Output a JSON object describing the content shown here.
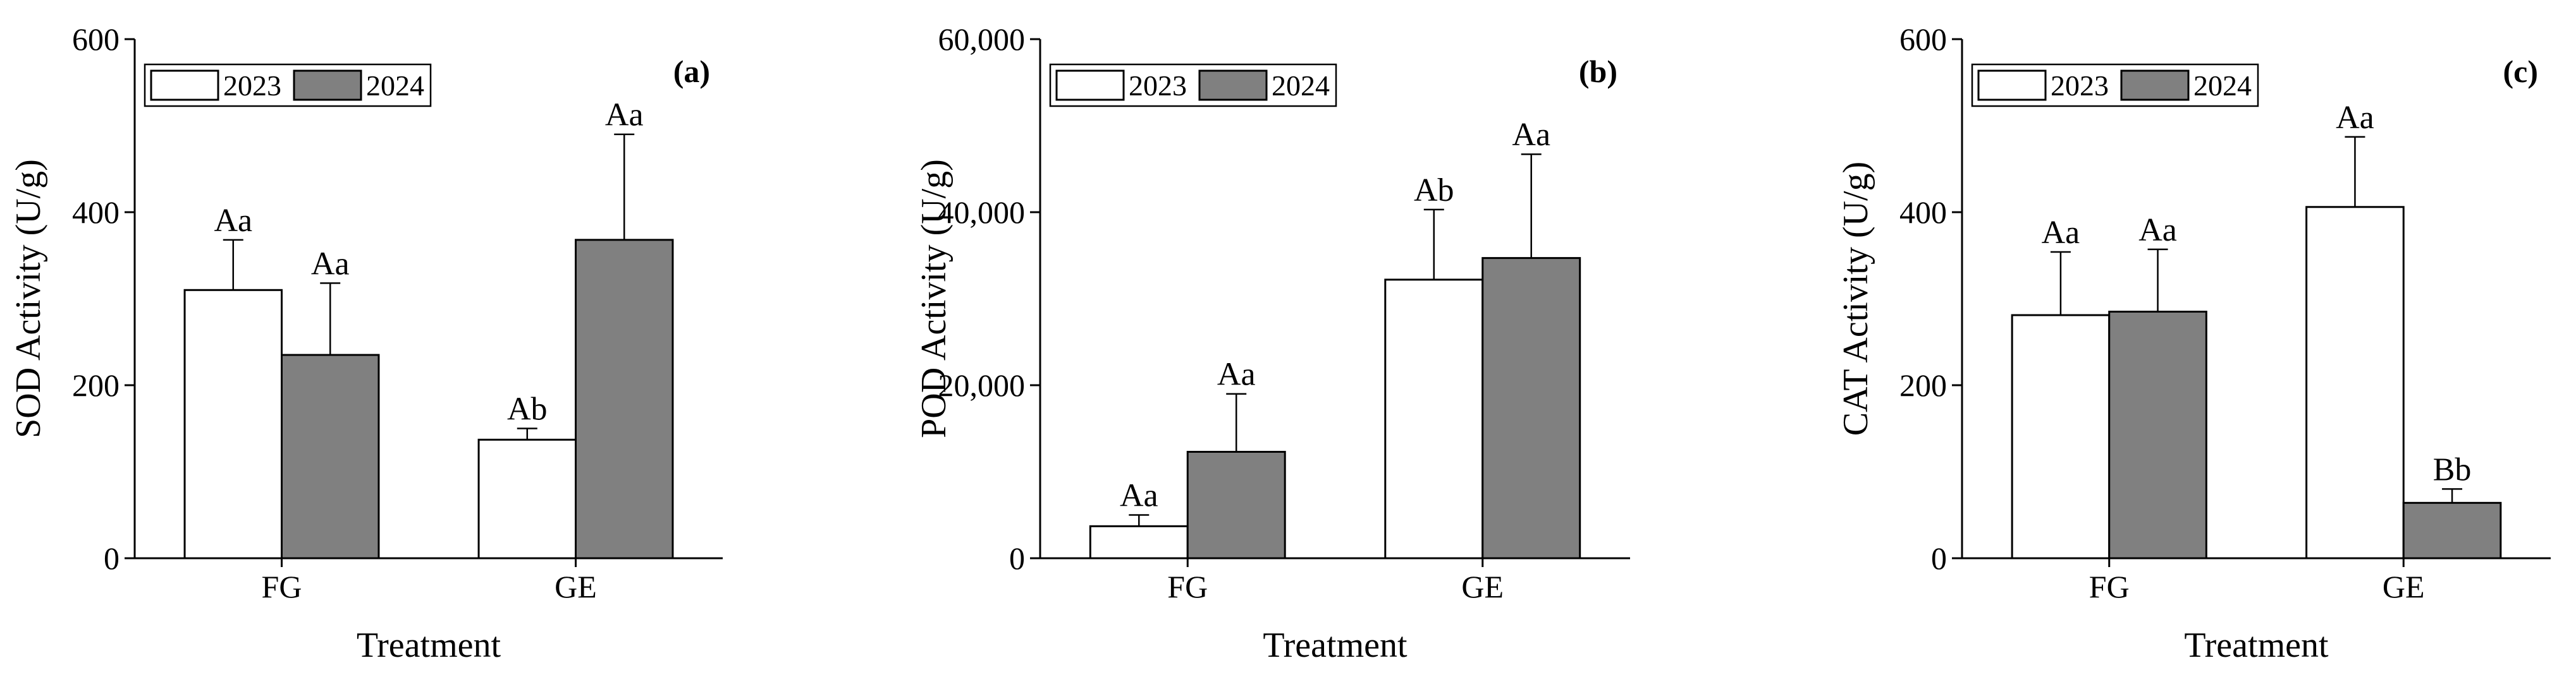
{
  "colors": {
    "series_2023": "#ffffff",
    "series_2024": "#808080",
    "axis": "#000000"
  },
  "chart_data": [
    {
      "type": "bar",
      "panel": "(a)",
      "ylabel": "SOD Activity (U/g)",
      "xlabel": "Treatment",
      "categories": [
        "FG",
        "GE"
      ],
      "ylim": [
        0,
        600
      ],
      "yticks": [
        0,
        200,
        400,
        600
      ],
      "ytick_labels": [
        "0",
        "200",
        "400",
        "600"
      ],
      "legend": [
        "2023",
        "2024"
      ],
      "legend_position": "top-left",
      "series": [
        {
          "name": "2023",
          "values": [
            310,
            137
          ],
          "errors": [
            58,
            13
          ],
          "labels": [
            "Aa",
            "Ab"
          ]
        },
        {
          "name": "2024",
          "values": [
            235,
            368
          ],
          "errors": [
            83,
            122
          ],
          "labels": [
            "Aa",
            "Aa"
          ]
        }
      ]
    },
    {
      "type": "bar",
      "panel": "(b)",
      "ylabel": "POD Activity (U/g)",
      "xlabel": "Treatment",
      "categories": [
        "FG",
        "GE"
      ],
      "ylim": [
        0,
        60000
      ],
      "yticks": [
        0,
        20000,
        40000,
        60000
      ],
      "ytick_labels": [
        "0",
        "20,000",
        "40,000",
        "60,000"
      ],
      "legend": [
        "2023",
        "2024"
      ],
      "legend_position": "top-left",
      "series": [
        {
          "name": "2023",
          "values": [
            3700,
            32200
          ],
          "errors": [
            1300,
            8100
          ],
          "labels": [
            "Aa",
            "Ab"
          ]
        },
        {
          "name": "2024",
          "values": [
            12300,
            34700
          ],
          "errors": [
            6700,
            12000
          ],
          "labels": [
            "Aa",
            "Aa"
          ]
        }
      ]
    },
    {
      "type": "bar",
      "panel": "(c)",
      "ylabel": "CAT Activity (U/g)",
      "xlabel": "Treatment",
      "categories": [
        "FG",
        "GE"
      ],
      "ylim": [
        0,
        600
      ],
      "yticks": [
        0,
        200,
        400,
        600
      ],
      "ytick_labels": [
        "0",
        "200",
        "400",
        "600"
      ],
      "legend": [
        "2023",
        "2024"
      ],
      "legend_position": "top-left",
      "series": [
        {
          "name": "2023",
          "values": [
            281,
            406
          ],
          "errors": [
            73,
            81
          ],
          "labels": [
            "Aa",
            "Aa"
          ]
        },
        {
          "name": "2024",
          "values": [
            285,
            64
          ],
          "errors": [
            72,
            16
          ],
          "labels": [
            "Aa",
            "Bb"
          ]
        }
      ]
    }
  ]
}
